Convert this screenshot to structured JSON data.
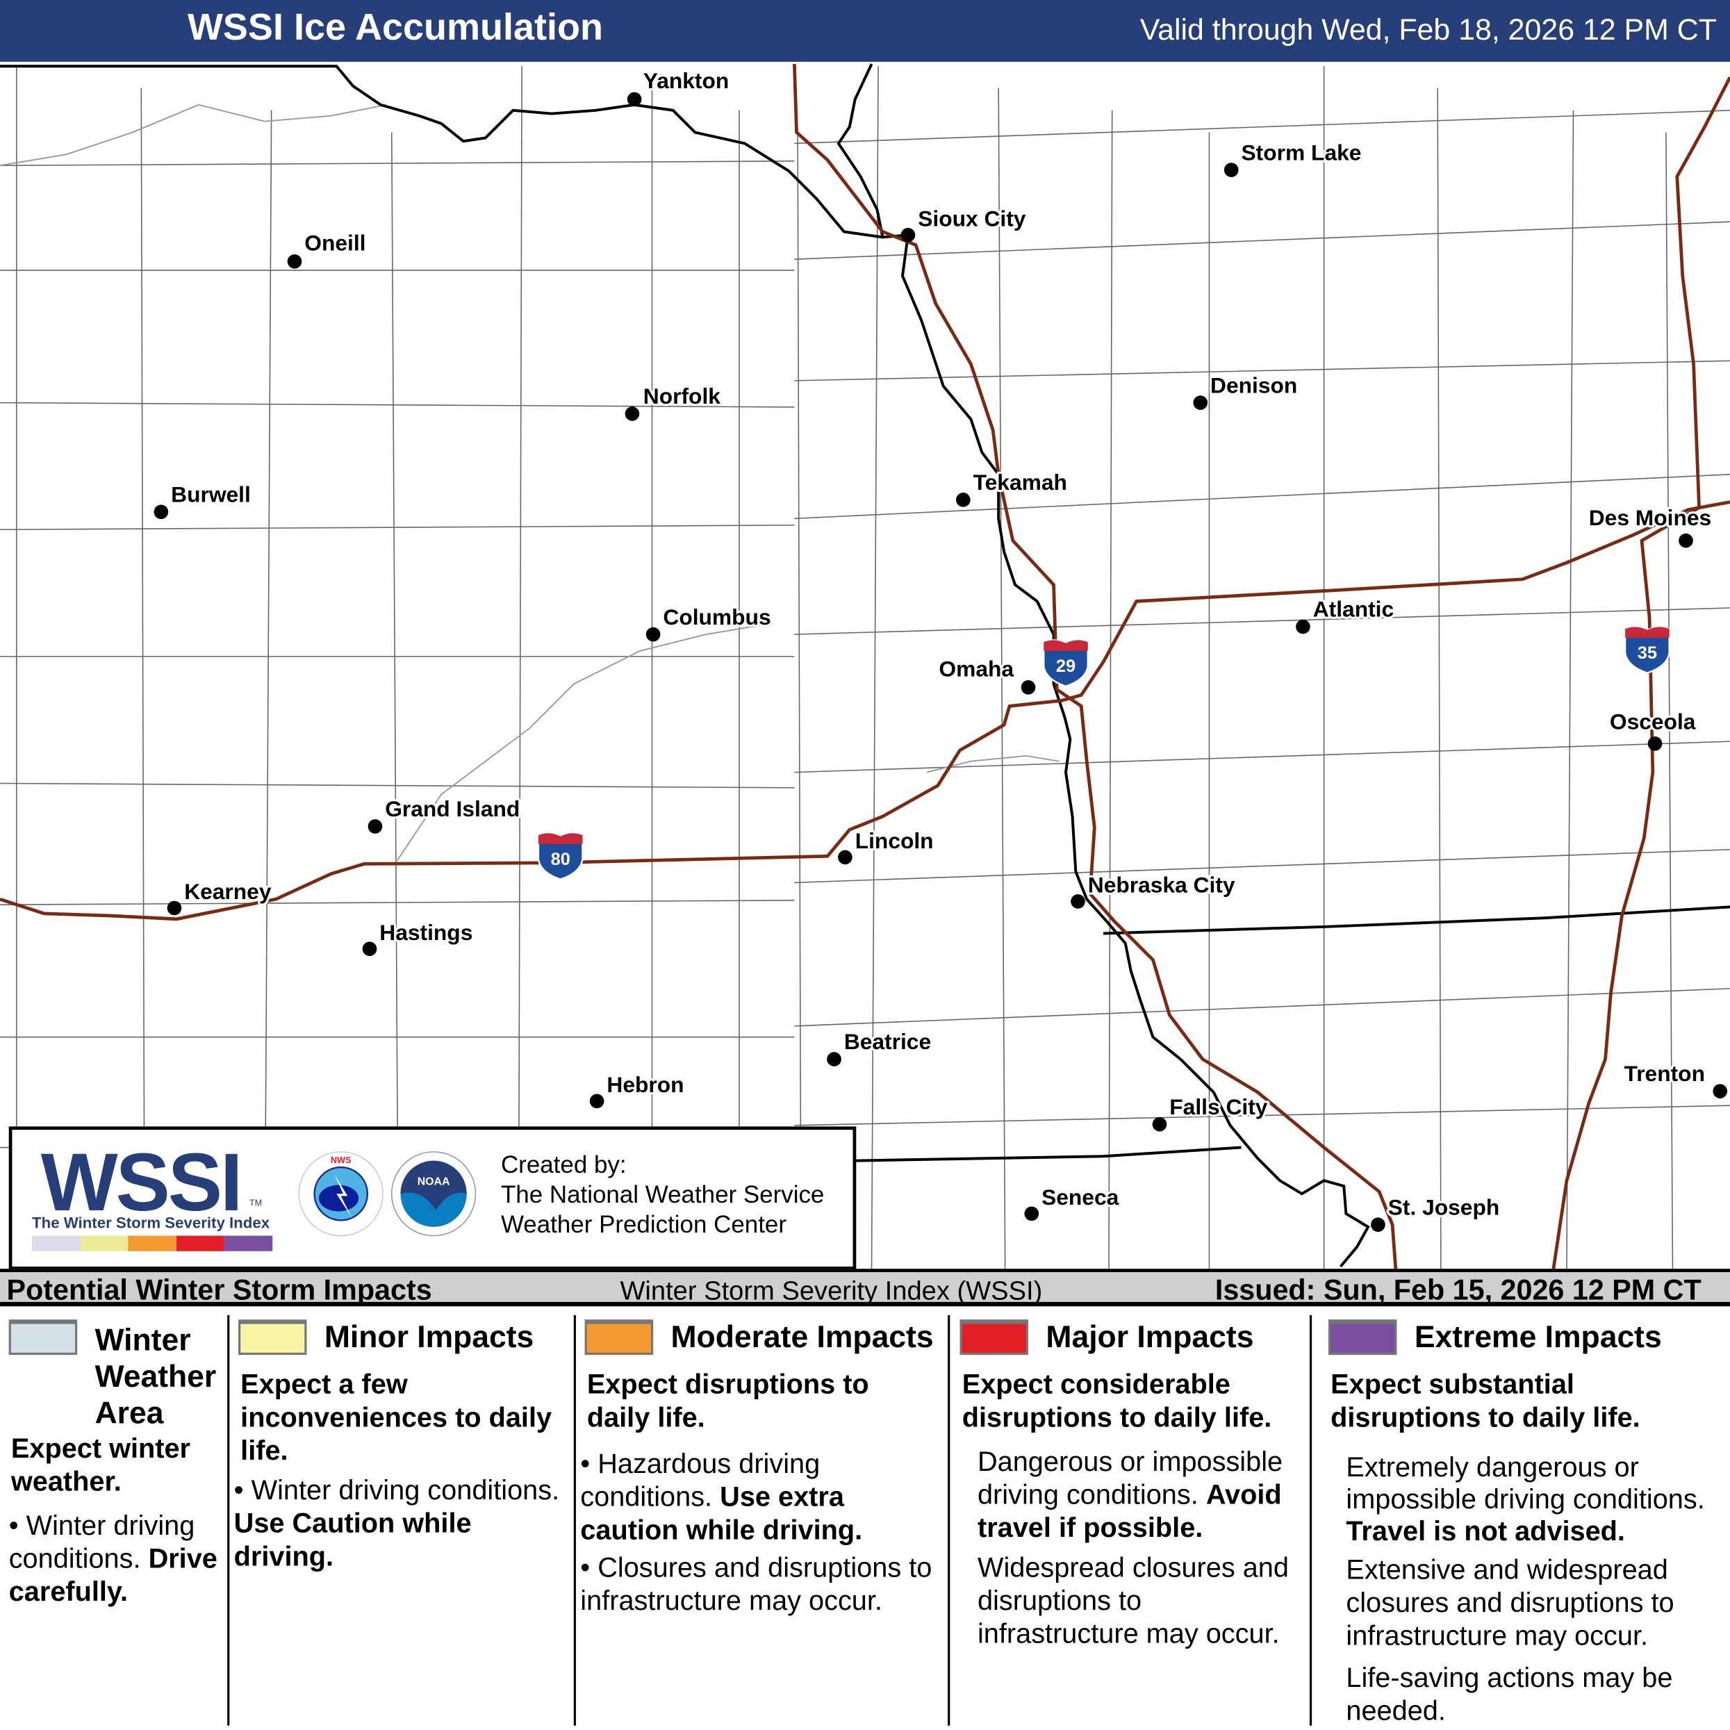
{
  "header": {
    "title": "WSSI Ice Accumulation",
    "valid": "Valid through Wed, Feb 18, 2026 12 PM CT"
  },
  "cities": [
    {
      "name": "Yankton"
    },
    {
      "name": "Storm Lake"
    },
    {
      "name": "Sioux City"
    },
    {
      "name": "Oneill"
    },
    {
      "name": "Norfolk"
    },
    {
      "name": "Denison"
    },
    {
      "name": "Burwell"
    },
    {
      "name": "Tekamah"
    },
    {
      "name": "Des Moines"
    },
    {
      "name": "Columbus"
    },
    {
      "name": "Atlantic"
    },
    {
      "name": "Omaha"
    },
    {
      "name": "Osceola"
    },
    {
      "name": "Grand Island"
    },
    {
      "name": "Lincoln"
    },
    {
      "name": "Nebraska City"
    },
    {
      "name": "Kearney"
    },
    {
      "name": "Hastings"
    },
    {
      "name": "Beatrice"
    },
    {
      "name": "Trenton"
    },
    {
      "name": "Hebron"
    },
    {
      "name": "Falls City"
    },
    {
      "name": "Seneca"
    },
    {
      "name": "St. Joseph"
    }
  ],
  "shields": [
    {
      "route": "80"
    },
    {
      "route": "29"
    },
    {
      "route": "35"
    }
  ],
  "colors": {
    "header": "#273f78",
    "highway": "#7a2a12",
    "winter_weather_area": "#d4e0e8",
    "minor": "#f8f4a6",
    "moderate": "#f59a31",
    "major": "#e31e26",
    "extreme": "#7a4f9f"
  },
  "logo": {
    "wssi": "WSSI",
    "tm": "TM",
    "subtitle": "The Winter Storm Severity Index",
    "nws": "NATIONAL WEATHER SERVICE",
    "noaa": "NOAA",
    "created_by": [
      "Created by:",
      "The National Weather Service",
      "Weather Prediction Center"
    ]
  },
  "legend_bar": {
    "left": "Potential Winter Storm Impacts",
    "middle": "Winter Storm Severity Index (WSSI)",
    "issued": "Issued: Sun, Feb 15, 2026 12 PM CT"
  },
  "legend": {
    "winter": {
      "title": [
        "Winter",
        "Weather",
        "Area"
      ],
      "head": "Expect winter weather.",
      "bullet": "Winter driving conditions.",
      "bold": "Drive carefully."
    },
    "minor": {
      "title": "Minor Impacts",
      "head": "Expect a few inconveniences to daily life.",
      "bullet": "Winter driving conditions.",
      "bold": "Use Caution while driving."
    },
    "moderate": {
      "title": "Moderate Impacts",
      "head": "Expect disruptions to daily life.",
      "bullet1": "Hazardous driving conditions.",
      "bold": "Use extra caution while driving.",
      "bullet2": "Closures and disruptions to infrastructure may occur."
    },
    "major": {
      "title": "Major Impacts",
      "head": "Expect considerable disruptions to daily life.",
      "p1": "Dangerous or impossible driving conditions.",
      "bold": "Avoid travel if possible.",
      "p2": "Widespread closures and disruptions to infrastructure may occur."
    },
    "extreme": {
      "title": "Extreme Impacts",
      "head": "Expect substantial disruptions to daily life.",
      "p1": "Extremely dangerous or impossible driving conditions.",
      "bold": "Travel is not advised.",
      "p2": "Extensive and widespread closures and disruptions to infrastructure may occur.",
      "p3": "Life-saving actions may be needed."
    }
  }
}
